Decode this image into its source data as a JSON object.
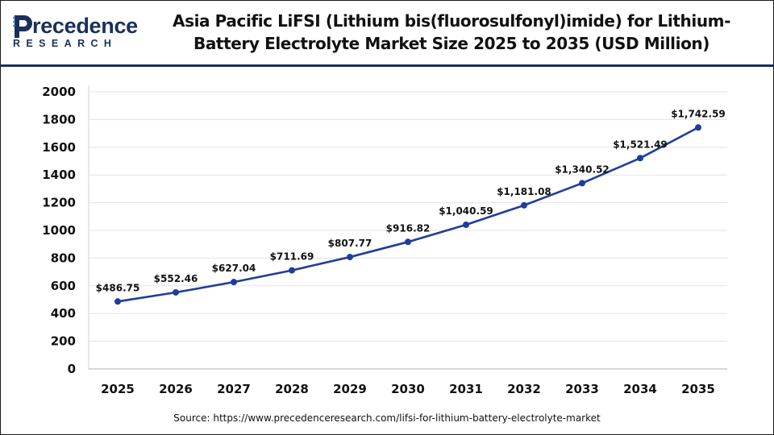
{
  "brand": {
    "name_first_letter": "P",
    "name_rest": "recedence",
    "sub": "RESEARCH",
    "colors": {
      "navy": "#1b2f5a",
      "accent": "#3d7ecf"
    }
  },
  "title": "Asia Pacific LiFSI (Lithium bis(fluorosulfonyl)imide) for Lithium-Battery Electrolyte Market Size 2025 to 2035 (USD Million)",
  "source": "Source: https://www.precedenceresearch.com/lifsi-for-lithium-battery-electrolyte-market",
  "chart_data": {
    "type": "line",
    "title": "Asia Pacific LiFSI (Lithium bis(fluorosulfonyl)imide) for Lithium-Battery Electrolyte Market Size 2025 to 2035 (USD Million)",
    "xlabel": "",
    "ylabel": "",
    "categories": [
      "2025",
      "2026",
      "2027",
      "2028",
      "2029",
      "2030",
      "2031",
      "2032",
      "2033",
      "2034",
      "2035"
    ],
    "series": [
      {
        "values": [
          486.75,
          552.46,
          627.04,
          711.69,
          807.77,
          916.82,
          1040.59,
          1181.08,
          1340.52,
          1521.49,
          1742.59
        ],
        "labels": [
          "$486.75",
          "$552.46",
          "$627.04",
          "$711.69",
          "$807.77",
          "$916.82",
          "$1,040.59",
          "$1,181.08",
          "$1,340.52",
          "$1,521.49",
          "$1,742.59"
        ],
        "color": "#1f3d99"
      }
    ],
    "ylim": [
      0,
      2000
    ],
    "yticks": [
      "0",
      "200",
      "400",
      "600",
      "800",
      "1000",
      "1200",
      "1400",
      "1600",
      "1800",
      "2000"
    ],
    "grid": true,
    "legend": "none"
  }
}
